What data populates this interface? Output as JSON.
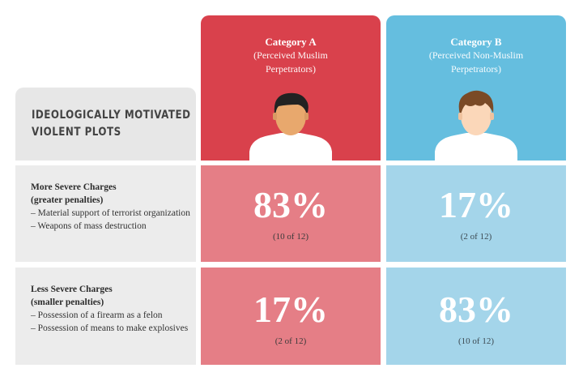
{
  "title_lines": [
    "IDEOLOGICALLY MOTIVATED",
    "VIOLENT PLOTS"
  ],
  "columns": [
    {
      "name": "Category A",
      "sub1": "(Perceived Muslim",
      "sub2": "Perpetrators)",
      "color": "#d9414c"
    },
    {
      "name": "Category B",
      "sub1": "(Perceived Non-Muslim",
      "sub2": "Perpetrators)",
      "color": "#65bedf"
    }
  ],
  "rows": [
    {
      "head1": "More Severe Charges",
      "head2": "(greater penalties)",
      "bullets": [
        "– Material support of terrorist organization",
        "– Weapons of mass destruction"
      ]
    },
    {
      "head1": "Less Severe Charges",
      "head2": "(smaller penalties)",
      "bullets": [
        "– Possession of a firearm as a felon",
        "– Possession of means to make explosives"
      ]
    }
  ],
  "chart_data": {
    "type": "table",
    "title": "IDEOLOGICALLY MOTIVATED VIOLENT PLOTS",
    "columns": [
      "Category A (Perceived Muslim Perpetrators)",
      "Category B (Perceived Non-Muslim Perpetrators)"
    ],
    "rows": [
      "More Severe Charges (greater penalties)",
      "Less Severe Charges (smaller penalties)"
    ],
    "cells": [
      [
        {
          "percent": "83%",
          "count": "(10 of 12)"
        },
        {
          "percent": "17%",
          "count": "(2 of 12)"
        }
      ],
      [
        {
          "percent": "17%",
          "count": "(2 of 12)"
        },
        {
          "percent": "83%",
          "count": "(10 of 12)"
        }
      ]
    ],
    "values": [
      [
        83,
        17
      ],
      [
        17,
        83
      ]
    ]
  }
}
